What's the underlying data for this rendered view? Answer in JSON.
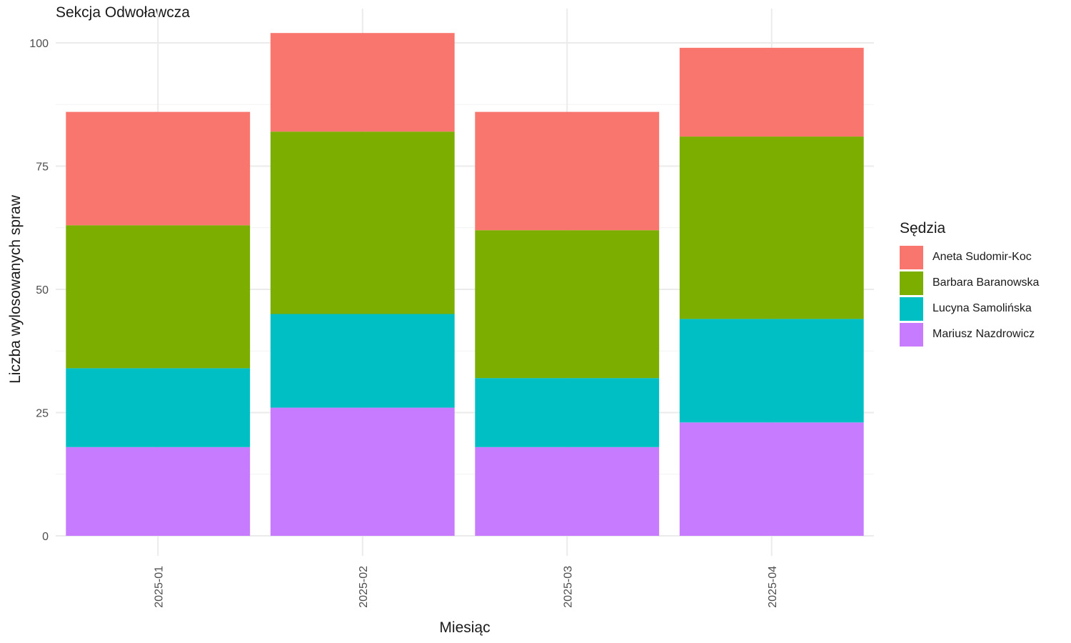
{
  "chart_data": {
    "type": "bar",
    "stacked": true,
    "title": "Sekcja Odwoławcza",
    "xlabel": "Miesiąc",
    "ylabel": "Liczba wylosowanych spraw",
    "ylim": [
      0,
      104
    ],
    "yticks": [
      0,
      25,
      50,
      75,
      100
    ],
    "grid": true,
    "legend_position": "right",
    "legend_title": "Sędzia",
    "categories": [
      "2025-01",
      "2025-02",
      "2025-03",
      "2025-04"
    ],
    "series": [
      {
        "name": "Mariusz Nazdrowicz",
        "color": "#C77CFF",
        "values": [
          18,
          26,
          18,
          23
        ]
      },
      {
        "name": "Lucyna Samolińska",
        "color": "#00BFC4",
        "values": [
          16,
          19,
          14,
          21
        ]
      },
      {
        "name": "Barbara Baranowska",
        "color": "#7CAE00",
        "values": [
          29,
          37,
          30,
          37
        ]
      },
      {
        "name": "Aneta Sudomir-Koc",
        "color": "#F8766D",
        "values": [
          23,
          20,
          24,
          18
        ]
      }
    ],
    "legend_order": [
      "Aneta Sudomir-Koc",
      "Barbara Baranowska",
      "Lucyna Samolińska",
      "Mariusz Nazdrowicz"
    ]
  }
}
